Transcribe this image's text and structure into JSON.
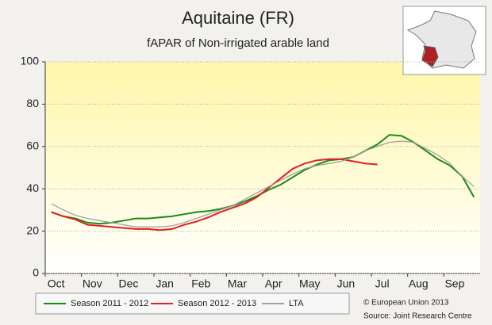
{
  "chart_data": {
    "type": "line",
    "title": "Aquitaine (FR)",
    "subtitle": "fAPAR of Non-irrigated arable land",
    "x": [
      "Oct",
      null,
      null,
      "Nov",
      null,
      null,
      "Dec",
      null,
      null,
      "Jan",
      null,
      null,
      "Feb",
      null,
      null,
      "Mar",
      null,
      null,
      "Apr",
      null,
      null,
      "May",
      null,
      null,
      "Jun",
      null,
      null,
      "Jul",
      null,
      null,
      "Aug",
      null,
      null,
      "Sep",
      null,
      null
    ],
    "series": [
      {
        "name": "Season 2011 - 2012",
        "color": "#1a8a1a",
        "values": [
          29,
          27,
          26,
          24,
          23.5,
          24,
          25,
          26,
          26,
          26.5,
          27,
          28,
          29,
          29.5,
          30.5,
          32,
          34,
          36.5,
          39.5,
          42,
          45.5,
          49,
          51.5,
          53.5,
          54,
          55,
          58,
          61,
          65.5,
          65,
          62,
          58,
          54,
          51,
          46,
          36
        ]
      },
      {
        "name": "Season 2012 - 2013",
        "color": "#e02020",
        "values": [
          29,
          27,
          25.5,
          23,
          22.5,
          22,
          21.5,
          21,
          21,
          20.5,
          21,
          23,
          24.5,
          26.5,
          29,
          31,
          33,
          36,
          40.5,
          45,
          49.5,
          52,
          53.5,
          54,
          54,
          53,
          52,
          51.5,
          null,
          null,
          null,
          null,
          null,
          null,
          null,
          null
        ]
      },
      {
        "name": "LTA",
        "color": "#a0a0a0",
        "values": [
          33,
          30,
          27.5,
          26,
          25,
          24,
          23,
          22,
          22,
          22,
          22.5,
          24,
          26,
          28,
          30,
          32,
          35,
          38,
          41,
          44,
          47,
          49.5,
          51,
          52,
          53,
          55,
          58,
          60,
          62,
          62.5,
          62,
          59,
          56,
          52,
          46,
          41
        ]
      }
    ],
    "ylim": [
      0,
      100
    ],
    "yticks": [
      0,
      20,
      40,
      60,
      80,
      100
    ],
    "grid": true,
    "legend": "bottom",
    "annotations": [
      "© European Union 2013",
      "Source: Joint Research Centre"
    ]
  }
}
